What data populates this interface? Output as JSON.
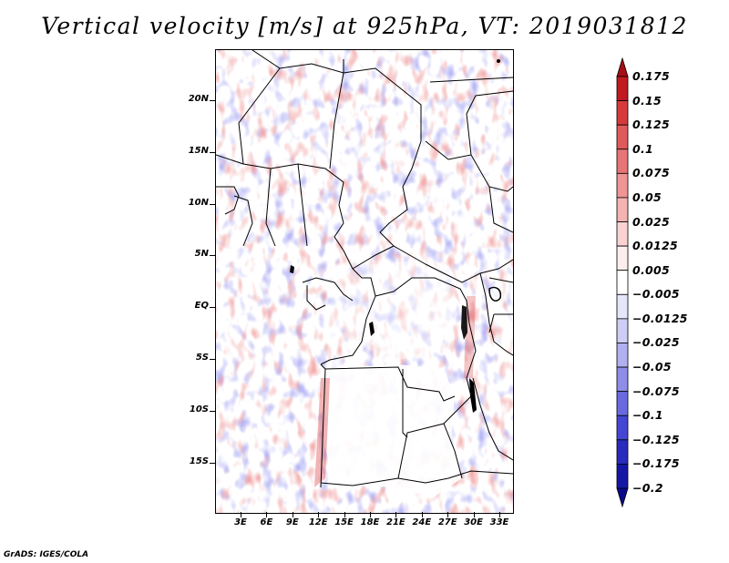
{
  "title": "Vertical velocity [m/s] at 925hPa, VT: 2019031812",
  "credit": "GrADS: IGES/COLA",
  "map": {
    "lat_labels": [
      "20N",
      "15N",
      "10N",
      "5N",
      "EQ",
      "5S",
      "10S",
      "15S"
    ],
    "lon_labels": [
      "3E",
      "6E",
      "9E",
      "12E",
      "15E",
      "18E",
      "21E",
      "24E",
      "27E",
      "30E",
      "33E"
    ],
    "colors": {
      "positive": "#e05a5a",
      "negative": "#6a6ae6",
      "borders": "#000000"
    }
  },
  "colorbar": {
    "unit": "m/s",
    "levels": [
      "0.175",
      "0.15",
      "0.125",
      "0.1",
      "0.075",
      "0.05",
      "0.025",
      "0.0125",
      "0.005",
      "-0.005",
      "-0.0125",
      "-0.025",
      "-0.05",
      "-0.075",
      "-0.1",
      "-0.125",
      "-0.175",
      "-0.2"
    ],
    "level_labels": [
      "0.175",
      "0.15",
      "0.125",
      "0.1",
      "0.075",
      "0.05",
      "0.025",
      "0.0125",
      "0.005",
      "−0.005",
      "−0.0125",
      "−0.025",
      "−0.05",
      "−0.075",
      "−0.1",
      "−0.125",
      "−0.175",
      "−0.2"
    ],
    "colors": [
      "#a50f15",
      "#c0191f",
      "#d63a3a",
      "#e05a5a",
      "#e87575",
      "#f09595",
      "#f5b2b2",
      "#fad2d2",
      "#fdeeee",
      "#ffffff",
      "#e6e6fb",
      "#cdcdf6",
      "#b0b0f0",
      "#8e8ee8",
      "#6a6ae0",
      "#4646d4",
      "#2a2abf",
      "#1616a6",
      "#0a0a8a"
    ]
  }
}
